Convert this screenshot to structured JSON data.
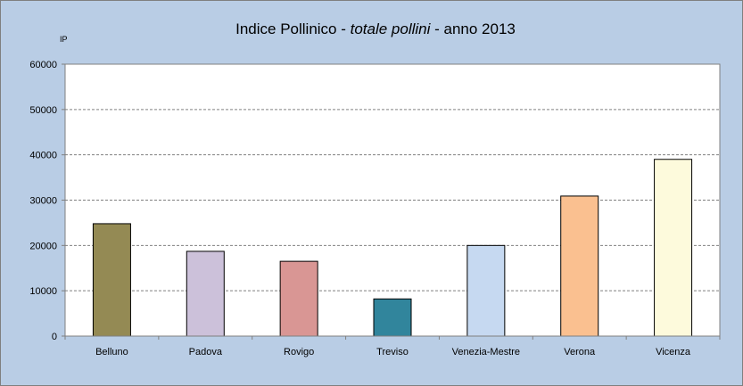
{
  "chart_data": {
    "type": "bar",
    "title": {
      "prefix": "Indice Pollinico - ",
      "emphasis": "totale pollini",
      "suffix": " - anno 2013"
    },
    "ylabel": "IP",
    "xlabel": "",
    "ylim": [
      0,
      60000
    ],
    "yticks": [
      0,
      10000,
      20000,
      30000,
      40000,
      50000,
      60000
    ],
    "categories": [
      "Belluno",
      "Padova",
      "Rovigo",
      "Treviso",
      "Venezia-Mestre",
      "Verona",
      "Vicenza"
    ],
    "values": [
      24800,
      18700,
      16500,
      8200,
      20000,
      30900,
      39000
    ],
    "colors": [
      "#948a54",
      "#ccc1da",
      "#d99694",
      "#31859c",
      "#c6d9f1",
      "#fac090",
      "#fdfadc"
    ],
    "grid": true,
    "legend": "none"
  }
}
